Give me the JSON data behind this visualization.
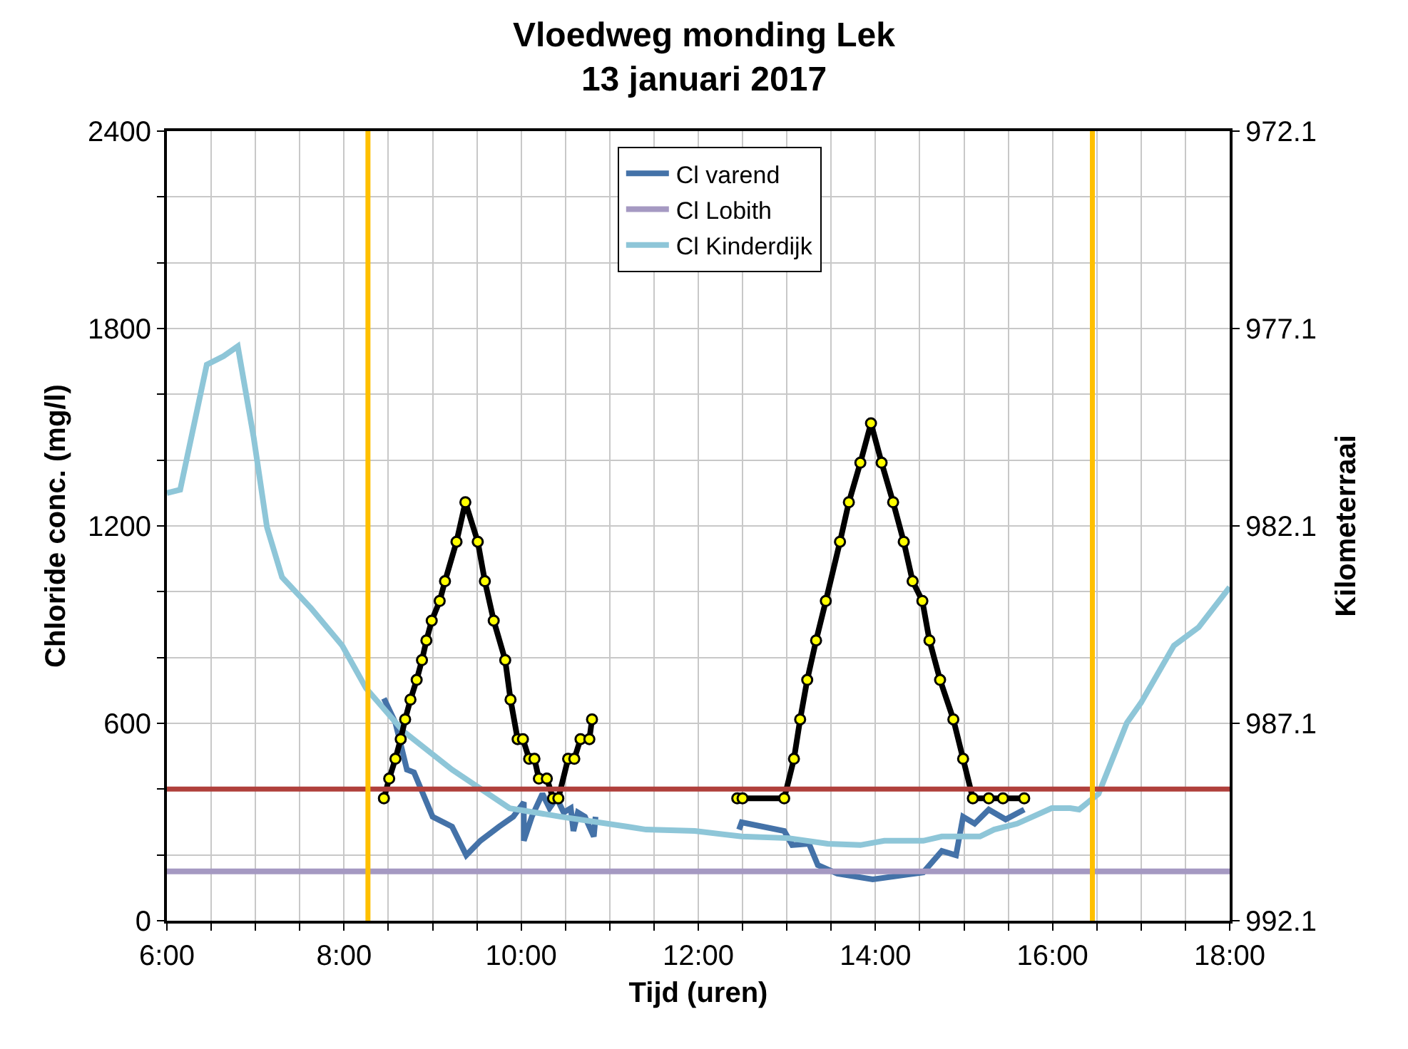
{
  "chart_data": {
    "type": "line",
    "title": "Vloedweg monding Lek\n13 januari 2017",
    "xlabel": "Tijd (uren)",
    "ylabel": "Chloride conc. (mg/l)",
    "y2label": "Kilometerraai",
    "xlim": [
      6,
      18
    ],
    "xticks": [
      {
        "value": 6,
        "label": "6:00"
      },
      {
        "value": 6.5,
        "label": null
      },
      {
        "value": 7,
        "label": null
      },
      {
        "value": 7.5,
        "label": null
      },
      {
        "value": 8,
        "label": "8:00"
      },
      {
        "value": 8.5,
        "label": null
      },
      {
        "value": 9,
        "label": null
      },
      {
        "value": 9.5,
        "label": null
      },
      {
        "value": 10,
        "label": "10:00"
      },
      {
        "value": 10.5,
        "label": null
      },
      {
        "value": 11,
        "label": null
      },
      {
        "value": 11.5,
        "label": null
      },
      {
        "value": 12,
        "label": "12:00"
      },
      {
        "value": 12.5,
        "label": null
      },
      {
        "value": 13,
        "label": null
      },
      {
        "value": 13.5,
        "label": null
      },
      {
        "value": 14,
        "label": "14:00"
      },
      {
        "value": 14.5,
        "label": null
      },
      {
        "value": 15,
        "label": null
      },
      {
        "value": 15.5,
        "label": null
      },
      {
        "value": 16,
        "label": "16:00"
      },
      {
        "value": 16.5,
        "label": null
      },
      {
        "value": 17,
        "label": null
      },
      {
        "value": 17.5,
        "label": null
      },
      {
        "value": 18,
        "label": "18:00"
      }
    ],
    "ylim": [
      0,
      2400
    ],
    "yticks": [
      0,
      {
        "value": 200,
        "label": null
      },
      {
        "value": 400,
        "label": null
      },
      600,
      {
        "value": 800,
        "label": null
      },
      {
        "value": 1000,
        "label": null
      },
      1200,
      {
        "value": 1400,
        "label": null
      },
      {
        "value": 1600,
        "label": null
      },
      1800,
      {
        "value": 2000,
        "label": null
      },
      {
        "value": 2200,
        "label": null
      },
      2400
    ],
    "y2lim": [
      992.1,
      972.1
    ],
    "y2ticks": [
      992.1,
      987.1,
      982.1,
      977.1,
      972.1
    ],
    "grid": true,
    "legend": "top",
    "line_style": "solid",
    "series": [
      {
        "name": "Cl varend",
        "color": "#4472a8",
        "marker": "none",
        "x": [
          8.45,
          8.58,
          8.71,
          8.79,
          9.0,
          9.22,
          9.38,
          9.54,
          9.75,
          9.91,
          10.03,
          10.03,
          10.12,
          10.24,
          10.32,
          10.4,
          10.48,
          10.56,
          10.59,
          10.64,
          10.72,
          10.82,
          10.84,
          11.5,
          12.46,
          12.49,
          12.97,
          13.06,
          13.25,
          13.35,
          13.57,
          13.97,
          14.54,
          14.75,
          14.91,
          14.99,
          15.12,
          15.28,
          15.47,
          15.68
        ],
        "values": [
          676,
          602,
          459,
          451,
          316,
          286,
          199,
          243,
          286,
          316,
          360,
          243,
          316,
          386,
          342,
          373,
          329,
          342,
          273,
          329,
          316,
          256,
          316,
          null,
          277,
          299,
          273,
          230,
          234,
          169,
          143,
          126,
          147,
          212,
          199,
          316,
          295,
          338,
          308,
          338
        ]
      },
      {
        "name": "Cl Lobith",
        "color": "#a599c2",
        "marker": "none",
        "x": [
          6,
          18
        ],
        "values": [
          150,
          150
        ]
      },
      {
        "name": "Cl Kinderdijk",
        "color": "#8ec6d8",
        "marker": "none",
        "x": [
          6,
          6.15,
          6.45,
          6.64,
          6.8,
          6.98,
          7.13,
          7.3,
          7.63,
          7.98,
          8.25,
          8.67,
          9.22,
          9.87,
          10.45,
          11.2,
          11.41,
          11.96,
          12.49,
          13.02,
          13.46,
          13.83,
          14.1,
          14.54,
          14.75,
          15.18,
          15.34,
          15.6,
          15.99,
          16.2,
          16.3,
          16.52,
          16.84,
          17.0,
          17.37,
          17.65,
          18.0
        ],
        "values": [
          1300,
          1310,
          1690,
          1716,
          1746,
          1469,
          1196,
          1044,
          949,
          836,
          706,
          576,
          459,
          342,
          316,
          286,
          277,
          273,
          256,
          251,
          234,
          230,
          243,
          243,
          256,
          256,
          277,
          295,
          342,
          342,
          338,
          386,
          602,
          663,
          836,
          892,
          1014
        ]
      },
      {
        "color": "#000000",
        "marker": "circle",
        "axis": "y2",
        "x": [
          8.45,
          8.51,
          8.58,
          8.64,
          8.69,
          8.75,
          8.82,
          8.88,
          8.93,
          8.99,
          9.08,
          9.14,
          9.27,
          9.37,
          9.51,
          9.59,
          9.69,
          9.82,
          9.88,
          9.96,
          10.02,
          10.09,
          10.15,
          10.2,
          10.29,
          10.36,
          10.42,
          10.53,
          10.6,
          10.67,
          10.77,
          10.8,
          11.6,
          12.44,
          12.5,
          12.97,
          13.08,
          13.15,
          13.23,
          13.33,
          13.44,
          13.6,
          13.7,
          13.83,
          13.95,
          14.07,
          14.2,
          14.32,
          14.42,
          14.53,
          14.61,
          14.73,
          14.88,
          14.99,
          15.1,
          15.28,
          15.44,
          15.68
        ],
        "values": [
          989.0,
          988.5,
          988.0,
          987.5,
          987.0,
          986.5,
          986.0,
          985.5,
          985.0,
          984.5,
          984.0,
          983.5,
          982.5,
          981.5,
          982.5,
          983.5,
          984.5,
          985.5,
          986.5,
          987.5,
          987.5,
          988.0,
          988.0,
          988.5,
          988.5,
          989.0,
          989.0,
          988.0,
          988.0,
          987.5,
          987.5,
          987.0,
          null,
          989.0,
          989.0,
          989.0,
          988.0,
          987.0,
          986.0,
          985.0,
          984.0,
          982.5,
          981.5,
          980.5,
          979.5,
          980.5,
          981.5,
          982.5,
          983.5,
          984.0,
          985.0,
          986.0,
          987.0,
          988.0,
          989.0,
          989.0,
          989.0,
          989.0
        ]
      }
    ],
    "ref_lines": [
      {
        "axis": "y",
        "value": 400,
        "color": "#b0403c"
      },
      {
        "axis": "x",
        "value": 8.27,
        "color": "#ffc000"
      },
      {
        "axis": "x",
        "value": 16.45,
        "color": "#ffc000"
      }
    ]
  }
}
